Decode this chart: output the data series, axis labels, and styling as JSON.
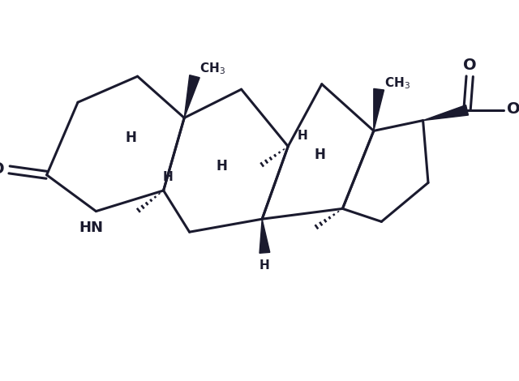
{
  "bg_color": "#ffffff",
  "line_color": "#1a1a2e",
  "line_width": 2.2,
  "fig_width": 6.4,
  "fig_height": 4.7,
  "dpi": 100,
  "xlim": [
    0,
    10
  ],
  "ylim": [
    0,
    7
  ]
}
